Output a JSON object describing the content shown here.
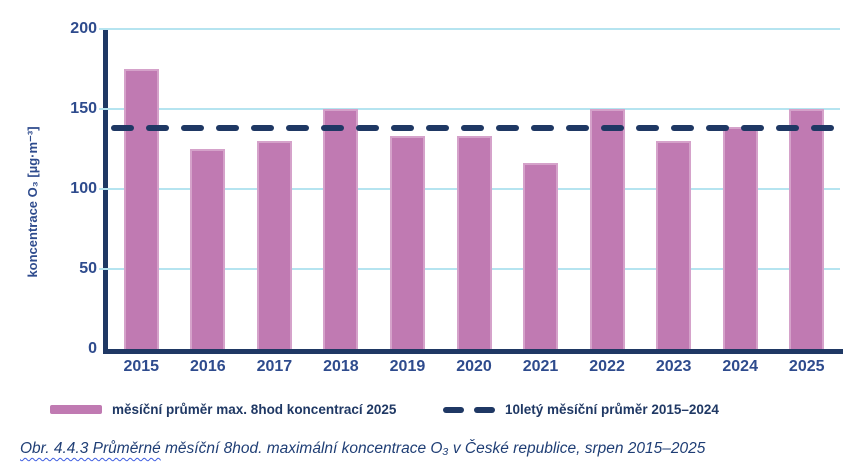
{
  "chart_data": {
    "type": "bar",
    "title": "",
    "categories": [
      "2015",
      "2016",
      "2017",
      "2018",
      "2019",
      "2020",
      "2021",
      "2022",
      "2023",
      "2024",
      "2025"
    ],
    "series": [
      {
        "name": "měsíční průměr max. 8hod koncentrací 2025",
        "type": "bar",
        "color": "#c07ab2",
        "values": [
          175,
          125,
          130,
          150,
          133,
          133,
          116,
          150,
          130,
          139,
          150
        ]
      },
      {
        "name": "10letý měsíční průměr 2015–2024",
        "type": "dashed-horizontal-line",
        "color": "#1f3864",
        "value": 138
      }
    ],
    "ylabel": "koncentrace O₃ [µg·m⁻³]",
    "xlabel": "",
    "ylim": [
      0,
      200
    ],
    "yticks": [
      0,
      50,
      100,
      150,
      200
    ],
    "grid": true,
    "legend_position": "bottom"
  },
  "colors": {
    "navy": "#1f3864",
    "label_blue": "#2e4b8d",
    "caption_blue": "#1f3e75",
    "grid_cyan": "#b5e4f0",
    "bar_fill": "#c07ab2",
    "bar_border": "#d5a2ca",
    "squiggle_blue": "#3c5ce0"
  },
  "caption": {
    "squiggle_part": "Obr. 4.4.3 Průměrné",
    "rest_part": " měsíční 8hod. maximální koncentrace O₃ v České republice, srpen 2015–2025"
  }
}
